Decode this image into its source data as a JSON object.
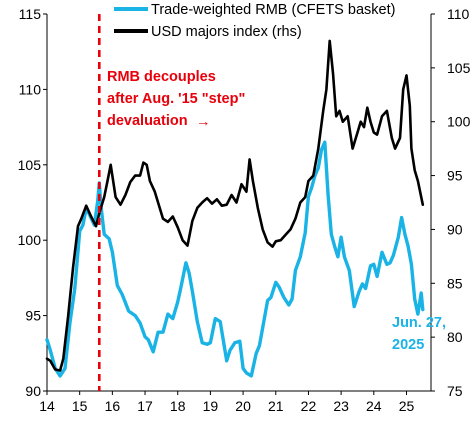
{
  "chart_data": {
    "type": "line",
    "title": "",
    "xlabel": "",
    "ylabel_left": "",
    "ylabel_right": "",
    "x_tick_labels": [
      "14",
      "15",
      "16",
      "17",
      "18",
      "19",
      "20",
      "21",
      "22",
      "23",
      "24",
      "25"
    ],
    "x_range": [
      2014.0,
      2025.75
    ],
    "y_left": {
      "range": [
        90,
        115
      ],
      "ticks": [
        90,
        95,
        100,
        105,
        110,
        115
      ]
    },
    "y_right": {
      "range": [
        75,
        110
      ],
      "ticks": [
        75,
        80,
        85,
        90,
        95,
        100,
        105,
        110
      ]
    },
    "legend_position": "top",
    "series": [
      {
        "name": "Trade-weighted RMB (CFETS basket)",
        "axis": "left",
        "color": "#19b3e6",
        "x": [
          2014.0,
          2014.1,
          2014.25,
          2014.4,
          2014.55,
          2014.7,
          2014.85,
          2015.0,
          2015.1,
          2015.2,
          2015.3,
          2015.45,
          2015.55,
          2015.6,
          2015.65,
          2015.75,
          2015.9,
          2016.0,
          2016.15,
          2016.3,
          2016.5,
          2016.7,
          2016.85,
          2017.0,
          2017.1,
          2017.25,
          2017.4,
          2017.55,
          2017.7,
          2017.85,
          2018.0,
          2018.1,
          2018.25,
          2018.35,
          2018.45,
          2018.6,
          2018.75,
          2018.9,
          2019.0,
          2019.15,
          2019.3,
          2019.5,
          2019.6,
          2019.75,
          2019.9,
          2020.0,
          2020.1,
          2020.25,
          2020.4,
          2020.5,
          2020.6,
          2020.75,
          2020.85,
          2021.0,
          2021.1,
          2021.25,
          2021.4,
          2021.5,
          2021.6,
          2021.75,
          2021.9,
          2022.0,
          2022.1,
          2022.2,
          2022.3,
          2022.4,
          2022.5,
          2022.6,
          2022.7,
          2022.8,
          2022.9,
          2023.0,
          2023.1,
          2023.25,
          2023.4,
          2023.55,
          2023.65,
          2023.75,
          2023.9,
          2024.0,
          2024.1,
          2024.25,
          2024.4,
          2024.5,
          2024.6,
          2024.75,
          2024.85,
          2024.95,
          2025.05,
          2025.15,
          2025.25,
          2025.35,
          2025.45,
          2025.5
        ],
        "values": [
          93.4,
          92.7,
          91.5,
          91.0,
          91.5,
          94.5,
          96.8,
          100.6,
          101.0,
          102.1,
          101.7,
          101.0,
          102.6,
          103.8,
          102.3,
          100.4,
          100.1,
          99.2,
          97.0,
          96.4,
          95.3,
          95.0,
          94.5,
          93.6,
          93.4,
          92.6,
          93.9,
          93.9,
          95.1,
          94.8,
          95.9,
          96.9,
          98.5,
          97.8,
          96.6,
          94.6,
          93.2,
          93.1,
          93.2,
          94.8,
          94.6,
          92.0,
          92.7,
          93.2,
          93.3,
          91.5,
          91.2,
          91.0,
          92.5,
          93.0,
          94.2,
          96.0,
          96.2,
          97.2,
          96.9,
          96.2,
          95.7,
          96.1,
          98.0,
          98.9,
          100.5,
          102.9,
          103.5,
          104.3,
          104.8,
          106.0,
          106.5,
          103.0,
          100.4,
          99.6,
          98.9,
          100.2,
          98.9,
          98.0,
          95.6,
          96.6,
          97.1,
          96.8,
          98.3,
          98.4,
          97.6,
          99.2,
          98.4,
          98.5,
          99.0,
          100.2,
          101.5,
          100.4,
          99.6,
          98.4,
          96.1,
          95.1,
          96.5,
          95.4
        ]
      },
      {
        "name": "USD majors index (rhs)",
        "axis": "right",
        "color": "#000000",
        "x": [
          2014.0,
          2014.1,
          2014.25,
          2014.4,
          2014.5,
          2014.65,
          2014.8,
          2014.95,
          2015.05,
          2015.2,
          2015.35,
          2015.5,
          2015.6,
          2015.75,
          2015.85,
          2015.95,
          2016.1,
          2016.25,
          2016.4,
          2016.55,
          2016.7,
          2016.85,
          2016.95,
          2017.05,
          2017.15,
          2017.3,
          2017.45,
          2017.55,
          2017.7,
          2017.85,
          2018.0,
          2018.15,
          2018.3,
          2018.45,
          2018.6,
          2018.75,
          2018.9,
          2019.05,
          2019.2,
          2019.35,
          2019.5,
          2019.65,
          2019.8,
          2019.95,
          2020.1,
          2020.2,
          2020.3,
          2020.45,
          2020.6,
          2020.75,
          2020.9,
          2021.0,
          2021.15,
          2021.3,
          2021.45,
          2021.6,
          2021.75,
          2021.9,
          2022.0,
          2022.15,
          2022.3,
          2022.45,
          2022.55,
          2022.65,
          2022.75,
          2022.85,
          2022.95,
          2023.05,
          2023.2,
          2023.35,
          2023.5,
          2023.6,
          2023.7,
          2023.8,
          2023.9,
          2024.0,
          2024.1,
          2024.25,
          2024.4,
          2024.55,
          2024.65,
          2024.8,
          2024.9,
          2025.0,
          2025.1,
          2025.15,
          2025.25,
          2025.35,
          2025.5
        ],
        "values": [
          78.0,
          77.8,
          77.0,
          76.9,
          78.0,
          82.0,
          86.5,
          90.3,
          91.0,
          92.2,
          91.2,
          90.3,
          91.5,
          93.0,
          94.5,
          96.0,
          93.0,
          92.3,
          93.2,
          94.4,
          95.0,
          95.0,
          96.2,
          96.0,
          94.5,
          93.5,
          92.0,
          91.0,
          90.7,
          91.2,
          90.2,
          89.0,
          88.5,
          90.8,
          92.0,
          92.5,
          92.9,
          92.4,
          92.8,
          92.2,
          92.3,
          93.2,
          92.5,
          94.2,
          93.5,
          96.5,
          94.5,
          92.0,
          90.0,
          88.8,
          88.4,
          88.9,
          89.0,
          89.5,
          90.0,
          91.0,
          92.5,
          93.0,
          94.5,
          95.0,
          97.5,
          101.0,
          103.0,
          107.5,
          104.5,
          100.5,
          101.0,
          100.0,
          100.5,
          97.5,
          99.0,
          100.0,
          99.5,
          101.3,
          100.0,
          99.0,
          98.8,
          100.5,
          101.0,
          98.5,
          97.5,
          98.5,
          103.0,
          104.3,
          101.5,
          97.5,
          95.5,
          94.5,
          92.3
        ]
      }
    ],
    "annotation": {
      "lines": [
        "RMB decouples",
        "after Aug. '15 \"step\"",
        "devaluation"
      ],
      "arrow": "→",
      "marker_x": 2015.6,
      "color": "#e8000b"
    },
    "end_label": {
      "lines": [
        "Jun. 27,",
        "2025"
      ],
      "color": "#19b3e6"
    }
  }
}
